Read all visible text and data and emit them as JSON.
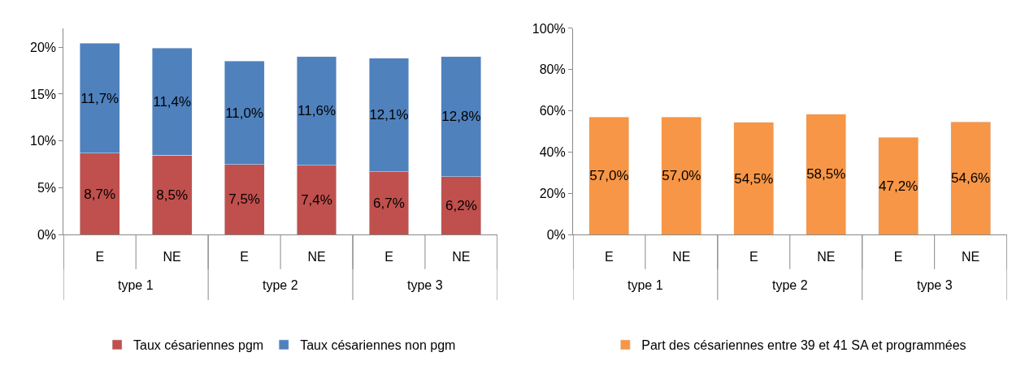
{
  "chart_data": [
    {
      "type": "bar",
      "stacked": true,
      "categories": [
        "E",
        "NE",
        "E",
        "NE",
        "E",
        "NE"
      ],
      "series": [
        {
          "name": "Taux césariennes pgm",
          "color": "#c0504d",
          "values": [
            8.7,
            8.5,
            7.5,
            7.4,
            6.7,
            6.2
          ],
          "value_labels": [
            "8,7%",
            "8,5%",
            "7,5%",
            "7,4%",
            "6,7%",
            "6,2%"
          ]
        },
        {
          "name": "Taux césariennes non pgm",
          "color": "#4f81bd",
          "values": [
            11.7,
            11.4,
            11.0,
            11.6,
            12.1,
            12.8
          ],
          "value_labels": [
            "11,7%",
            "11,4%",
            "11,0%",
            "11,6%",
            "12,1%",
            "12,8%"
          ]
        }
      ],
      "ylim": [
        0,
        22
      ],
      "yticks": [
        {
          "value": 0,
          "label": "0%"
        },
        {
          "value": 5,
          "label": "5%"
        },
        {
          "value": 10,
          "label": "10%"
        },
        {
          "value": 15,
          "label": "15%"
        },
        {
          "value": 20,
          "label": "20%"
        }
      ],
      "legend": "bottom",
      "annotations": [
        "type 1",
        "type 2",
        "type 3"
      ]
    },
    {
      "type": "bar",
      "categories": [
        "E",
        "NE",
        "E",
        "NE",
        "E",
        "NE"
      ],
      "series": [
        {
          "name": "Part des césariennes entre 39 et 41 SA et programmées",
          "color": "#f79646",
          "values": [
            57.0,
            57.0,
            54.5,
            58.5,
            47.2,
            54.6
          ],
          "value_labels": [
            "57,0%",
            "57,0%",
            "54,5%",
            "58,5%",
            "47,2%",
            "54,6%"
          ]
        }
      ],
      "ylim": [
        0,
        100
      ],
      "yticks": [
        {
          "value": 0,
          "label": "0%"
        },
        {
          "value": 20,
          "label": "20%"
        },
        {
          "value": 40,
          "label": "40%"
        },
        {
          "value": 60,
          "label": "60%"
        },
        {
          "value": 80,
          "label": "80%"
        },
        {
          "value": 100,
          "label": "100%"
        }
      ],
      "legend": "bottom",
      "annotations": [
        "type 1",
        "type 2",
        "type 3"
      ]
    }
  ]
}
